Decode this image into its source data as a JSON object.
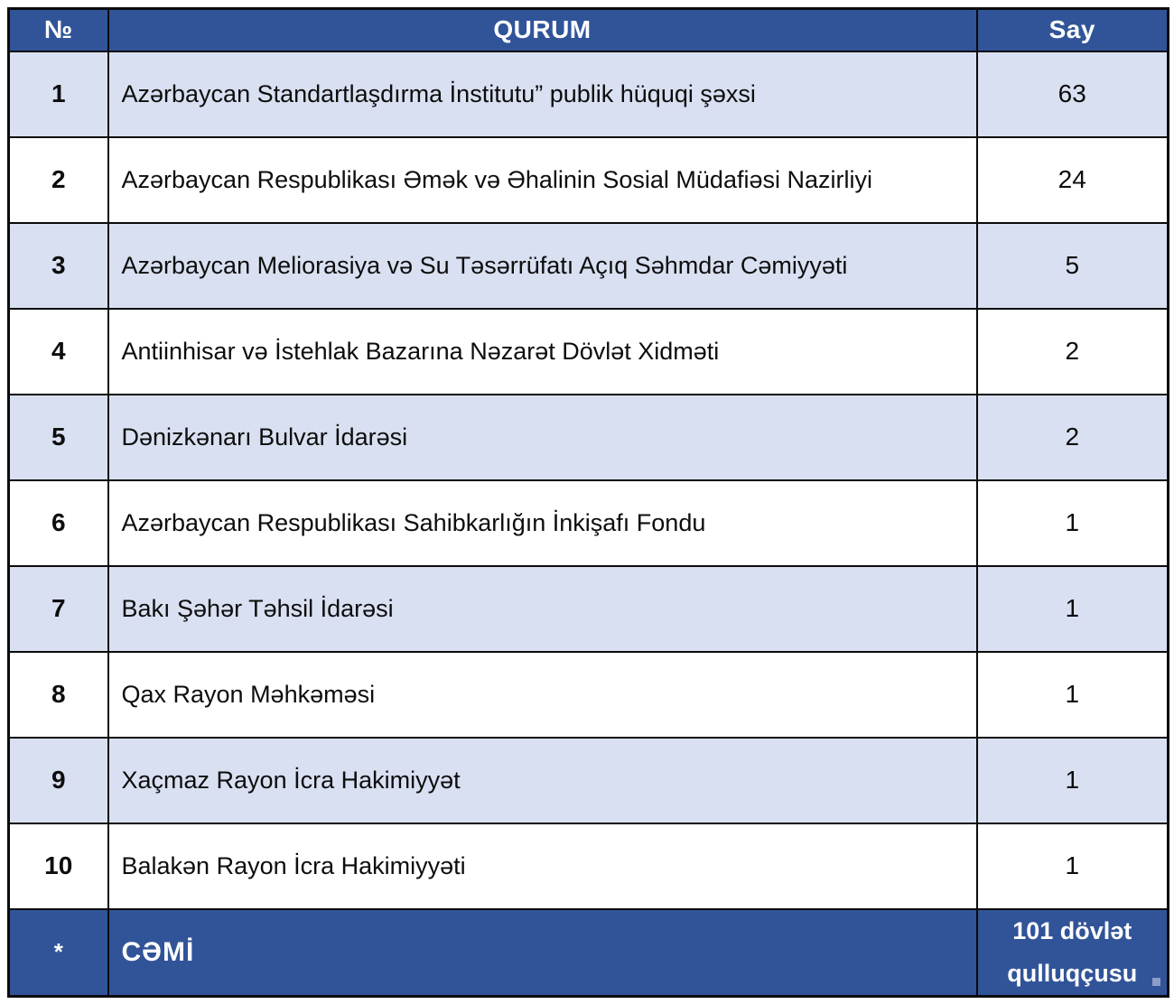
{
  "table": {
    "headers": {
      "num": "№",
      "qurum": "QURUM",
      "say": "Say"
    },
    "rows": [
      {
        "num": "1",
        "qurum": "Azərbaycan Standartlaşdırma İnstitutu” publik hüquqi şəxsi",
        "say": "63"
      },
      {
        "num": "2",
        "qurum": "Azərbaycan Respublikası Əmək və Əhalinin Sosial Müdafiəsi Nazirliyi",
        "say": "24"
      },
      {
        "num": "3",
        "qurum": "Azərbaycan Meliorasiya və Su Təsərrüfatı Açıq Səhmdar Cəmiyyəti",
        "say": "5"
      },
      {
        "num": "4",
        "qurum": "Antiinhisar və İstehlak Bazarına Nəzarət Dövlət Xidməti",
        "say": "2"
      },
      {
        "num": "5",
        "qurum": "Dənizkənarı Bulvar İdarəsi",
        "say": "2"
      },
      {
        "num": "6",
        "qurum": "Azərbaycan Respublikası Sahibkarlığın İnkişafı Fondu",
        "say": "1"
      },
      {
        "num": "7",
        "qurum": "Bakı Şəhər Təhsil İdarəsi",
        "say": "1"
      },
      {
        "num": "8",
        "qurum": "Qax Rayon Məhkəməsi",
        "say": "1"
      },
      {
        "num": "9",
        "qurum": "Xaçmaz Rayon İcra Hakimiyyət",
        "say": "1"
      },
      {
        "num": "10",
        "qurum": "Balakən Rayon İcra Hakimiyyəti",
        "say": "1"
      }
    ],
    "total": {
      "num": "*",
      "label": "CƏMİ",
      "say": "101 dövlət qulluqçusu"
    }
  },
  "colors": {
    "header_blue": "#315499",
    "row_alt_blue": "#d9e0f1",
    "row_plain": "#ffffff",
    "border": "#0b0b0b",
    "header_text": "#ffffff",
    "body_text": "#0d0d0d"
  }
}
